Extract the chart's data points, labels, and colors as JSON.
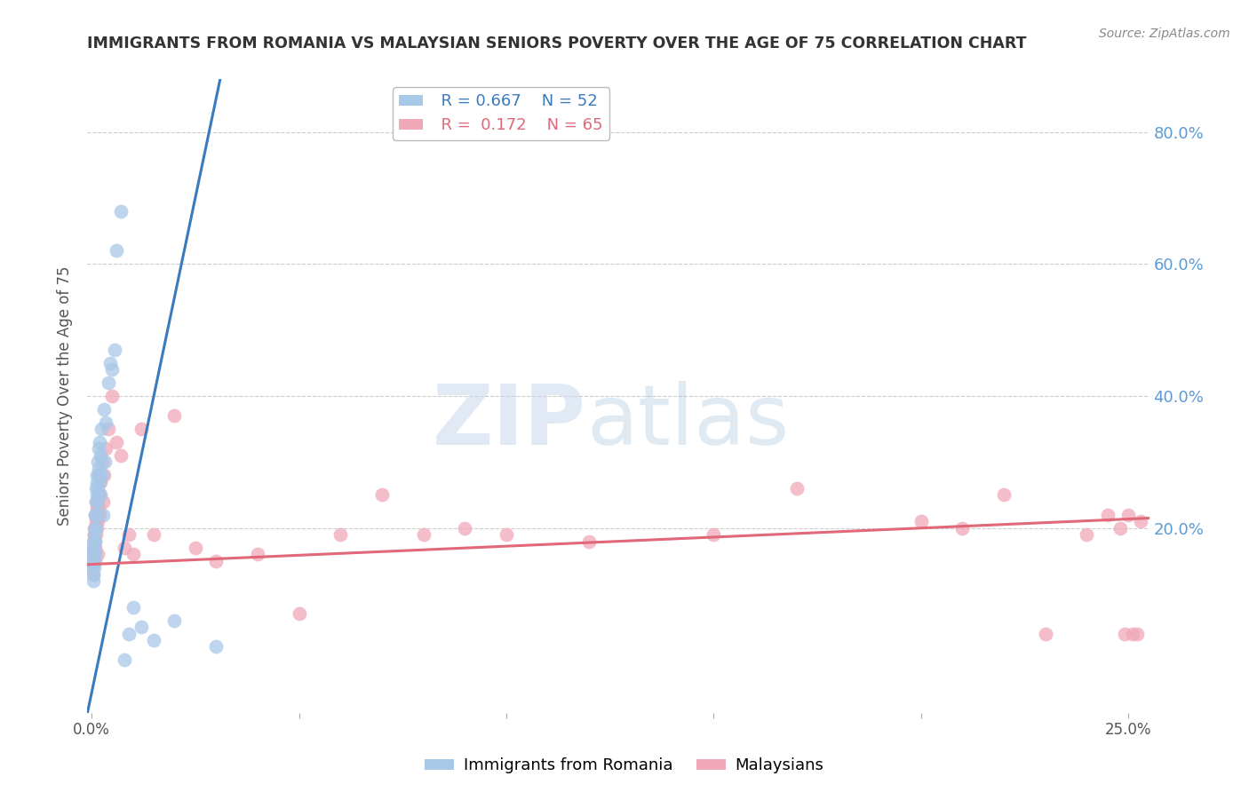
{
  "title": "IMMIGRANTS FROM ROMANIA VS MALAYSIAN SENIORS POVERTY OVER THE AGE OF 75 CORRELATION CHART",
  "source": "Source: ZipAtlas.com",
  "ylabel": "Seniors Poverty Over the Age of 75",
  "ytick_labels": [
    "80.0%",
    "60.0%",
    "40.0%",
    "20.0%"
  ],
  "ytick_values": [
    0.8,
    0.6,
    0.4,
    0.2
  ],
  "xlim": [
    -0.001,
    0.255
  ],
  "ylim": [
    -0.08,
    0.88
  ],
  "legend_romania_R": "0.667",
  "legend_romania_N": "52",
  "legend_malaysia_R": "0.172",
  "legend_malaysia_N": "65",
  "color_romania": "#a8c8e8",
  "color_malaysia": "#f0a8b8",
  "color_romania_line": "#3a7abf",
  "color_malaysia_line": "#e06878",
  "color_right_axis": "#5b9bd5",
  "romania_line": [
    0.0,
    0.03,
    0.85
  ],
  "malaysia_line": [
    0.0,
    0.145,
    0.25,
    0.215
  ],
  "romania_scatter_x": [
    0.0002,
    0.0003,
    0.0004,
    0.0004,
    0.0005,
    0.0005,
    0.0005,
    0.0006,
    0.0006,
    0.0007,
    0.0007,
    0.0007,
    0.0008,
    0.0008,
    0.0009,
    0.0009,
    0.001,
    0.001,
    0.0011,
    0.0011,
    0.0012,
    0.0012,
    0.0013,
    0.0014,
    0.0015,
    0.0015,
    0.0016,
    0.0017,
    0.0018,
    0.0019,
    0.002,
    0.0021,
    0.0022,
    0.0024,
    0.0025,
    0.0027,
    0.003,
    0.0032,
    0.0035,
    0.004,
    0.0045,
    0.005,
    0.0055,
    0.006,
    0.007,
    0.008,
    0.009,
    0.01,
    0.012,
    0.015,
    0.02,
    0.03
  ],
  "romania_scatter_y": [
    0.16,
    0.14,
    0.17,
    0.13,
    0.15,
    0.18,
    0.12,
    0.16,
    0.14,
    0.19,
    0.15,
    0.17,
    0.2,
    0.16,
    0.22,
    0.18,
    0.24,
    0.2,
    0.26,
    0.22,
    0.25,
    0.28,
    0.27,
    0.24,
    0.3,
    0.26,
    0.28,
    0.32,
    0.29,
    0.27,
    0.33,
    0.25,
    0.31,
    0.35,
    0.28,
    0.22,
    0.38,
    0.3,
    0.36,
    0.42,
    0.45,
    0.44,
    0.47,
    0.62,
    0.68,
    0.0,
    0.04,
    0.08,
    0.05,
    0.03,
    0.06,
    0.02
  ],
  "malaysia_scatter_x": [
    0.0002,
    0.0003,
    0.0004,
    0.0004,
    0.0005,
    0.0005,
    0.0006,
    0.0006,
    0.0007,
    0.0007,
    0.0008,
    0.0008,
    0.0009,
    0.0009,
    0.001,
    0.001,
    0.0011,
    0.0012,
    0.0013,
    0.0014,
    0.0015,
    0.0016,
    0.0017,
    0.0018,
    0.0019,
    0.002,
    0.0022,
    0.0025,
    0.0028,
    0.003,
    0.0035,
    0.004,
    0.005,
    0.006,
    0.007,
    0.008,
    0.009,
    0.01,
    0.012,
    0.015,
    0.02,
    0.025,
    0.03,
    0.04,
    0.05,
    0.06,
    0.07,
    0.08,
    0.09,
    0.1,
    0.12,
    0.15,
    0.17,
    0.2,
    0.21,
    0.22,
    0.23,
    0.24,
    0.245,
    0.248,
    0.249,
    0.25,
    0.251,
    0.252,
    0.253
  ],
  "malaysia_scatter_y": [
    0.14,
    0.16,
    0.13,
    0.17,
    0.15,
    0.18,
    0.16,
    0.19,
    0.17,
    0.2,
    0.15,
    0.18,
    0.22,
    0.17,
    0.19,
    0.21,
    0.24,
    0.2,
    0.23,
    0.21,
    0.16,
    0.25,
    0.23,
    0.28,
    0.22,
    0.25,
    0.27,
    0.3,
    0.24,
    0.28,
    0.32,
    0.35,
    0.4,
    0.33,
    0.31,
    0.17,
    0.19,
    0.16,
    0.35,
    0.19,
    0.37,
    0.17,
    0.15,
    0.16,
    0.07,
    0.19,
    0.25,
    0.19,
    0.2,
    0.19,
    0.18,
    0.19,
    0.26,
    0.21,
    0.2,
    0.25,
    0.04,
    0.19,
    0.22,
    0.2,
    0.04,
    0.22,
    0.04,
    0.04,
    0.21
  ]
}
